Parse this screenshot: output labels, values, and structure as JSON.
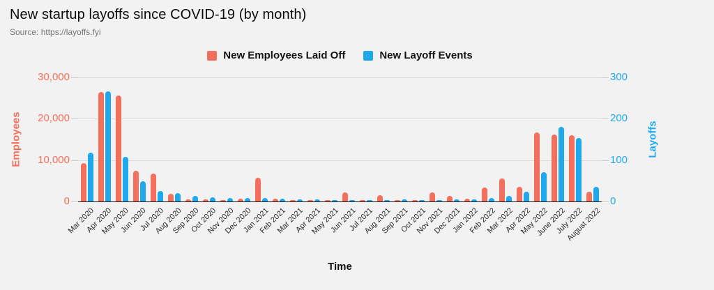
{
  "header": {
    "title": "New startup layoffs since COVID-19 (by month)",
    "source": "Source: https://layoffs.fyi"
  },
  "legend": [
    {
      "label": "New Employees Laid Off",
      "color": "#f5705c"
    },
    {
      "label": "New Layoff Events",
      "color": "#1fa9ec"
    }
  ],
  "colors": {
    "employees_accent": "#f5705c",
    "events_accent": "#1fa9ec",
    "background": "#f2f2f3",
    "gridline": "#d9d9da",
    "baseline": "#151515"
  },
  "chart_data": {
    "type": "bar",
    "title": "New startup layoffs since COVID-19 (by month)",
    "subtitle": "Source: https://layoffs.fyi",
    "xlabel": "Time",
    "ylabel_left": "Employees",
    "ylabel_right": "Layoffs",
    "grid": "horizontal",
    "legend_position": "top",
    "y_left_axis": {
      "min": 0,
      "max": 30000,
      "tick_labels": [
        "0",
        "10,000",
        "20,000",
        "30,000"
      ]
    },
    "y_right_axis": {
      "min": 0,
      "max": 300,
      "tick_labels": [
        "0",
        "100",
        "200",
        "300"
      ]
    },
    "categories": [
      "Mar 2020",
      "Apr 2020",
      "May 2020",
      "Jun 2020",
      "Jul 2020",
      "Aug 2020",
      "Sep 2020",
      "Oct 2020",
      "Nov 2020",
      "Dec 2020",
      "Jan 2021",
      "Feb 2021",
      "Mar 2021",
      "Apr 2021",
      "May 2021",
      "Jun 2021",
      "Jul 2021",
      "Aug 2021",
      "Sep 2021",
      "Oct 2021",
      "Nov 2021",
      "Dec 2021",
      "Jan 2022",
      "Feb 2022",
      "Mar 2022",
      "Apr 2022",
      "May 2022",
      "June 2022",
      "July 2022",
      "August 2022"
    ],
    "series": [
      {
        "name": "New Employees Laid Off",
        "axis": "left",
        "color": "#f5705c",
        "values": [
          9300,
          26500,
          25700,
          7400,
          6800,
          1900,
          500,
          500,
          300,
          700,
          5800,
          700,
          100,
          150,
          100,
          2200,
          80,
          1500,
          350,
          100,
          2200,
          1300,
          750,
          3400,
          5500,
          3600,
          16700,
          16200,
          16000,
          2400
        ]
      },
      {
        "name": "New Layoff Events",
        "axis": "right",
        "color": "#1fa9ec",
        "values": [
          118,
          266,
          108,
          49,
          25,
          20,
          13,
          11,
          9,
          8,
          8,
          6,
          5,
          5,
          4,
          3,
          2,
          3,
          5,
          3,
          4,
          5,
          5,
          8,
          13,
          24,
          71,
          180,
          153,
          35
        ]
      }
    ]
  }
}
